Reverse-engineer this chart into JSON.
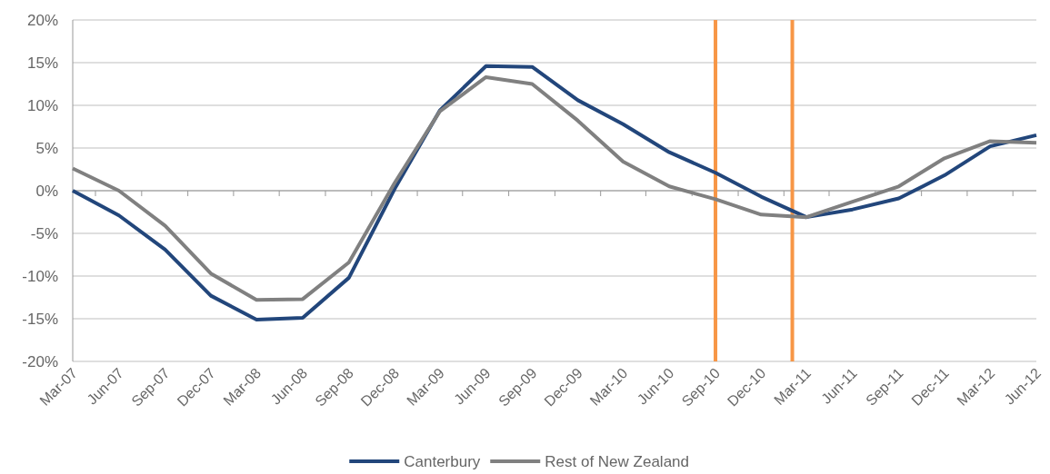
{
  "chart_data": {
    "type": "line",
    "x": [
      "2007-03",
      "2007-06",
      "2007-09",
      "2007-12",
      "2008-03",
      "2008-06",
      "2008-09",
      "2008-12",
      "2009-03",
      "2009-06",
      "2009-09",
      "2009-12",
      "2010-03",
      "2010-06",
      "2010-09",
      "2010-12",
      "2011-03",
      "2011-06",
      "2011-09",
      "2011-12",
      "2012-03",
      "2012-06"
    ],
    "series": [
      {
        "name": "Canterbury",
        "color": "#22467b",
        "values": [
          0,
          -2.9,
          -6.9,
          -12.3,
          -15.1,
          -14.9,
          -10.2,
          0.2,
          9.4,
          14.6,
          14.5,
          10.6,
          7.8,
          4.5,
          2.1,
          -0.7,
          -3.1,
          -2.2,
          -0.9,
          1.8,
          5.2,
          6.5
        ]
      },
      {
        "name": "Rest of New Zealand",
        "color": "#808080",
        "values": [
          2.6,
          0,
          -4.1,
          -9.7,
          -12.8,
          -12.7,
          -8.4,
          0.9,
          9.3,
          13.3,
          12.5,
          8.2,
          3.4,
          0.5,
          -1.0,
          -2.8,
          -3.1,
          -1.3,
          0.5,
          3.8,
          5.8,
          5.6
        ]
      }
    ],
    "xlim": [
      "2007-03",
      "2012-06"
    ],
    "xticks": [
      {
        "value": "2007-03",
        "label": "Mar-07"
      },
      {
        "value": "2007-06",
        "label": "Jun-07"
      },
      {
        "value": "2007-09",
        "label": "Sep-07"
      },
      {
        "value": "2007-12",
        "label": "Dec-07"
      },
      {
        "value": "2008-03",
        "label": "Mar-08"
      },
      {
        "value": "2008-06",
        "label": "Jun-08"
      },
      {
        "value": "2008-09",
        "label": "Sep-08"
      },
      {
        "value": "2008-12",
        "label": "Dec-08"
      },
      {
        "value": "2009-03",
        "label": "Mar-09"
      },
      {
        "value": "2009-06",
        "label": "Jun-09"
      },
      {
        "value": "2009-09",
        "label": "Sep-09"
      },
      {
        "value": "2009-12",
        "label": "Dec-09"
      },
      {
        "value": "2010-03",
        "label": "Mar-10"
      },
      {
        "value": "2010-06",
        "label": "Jun-10"
      },
      {
        "value": "2010-09",
        "label": "Sep-10"
      },
      {
        "value": "2010-12",
        "label": "Dec-10"
      },
      {
        "value": "2011-03",
        "label": "Mar-11"
      },
      {
        "value": "2011-06",
        "label": "Jun-11"
      },
      {
        "value": "2011-09",
        "label": "Sep-11"
      },
      {
        "value": "2011-12",
        "label": "Dec-11"
      },
      {
        "value": "2012-03",
        "label": "Mar-12"
      },
      {
        "value": "2012-06",
        "label": "Jun-12"
      }
    ],
    "ylim": [
      -20,
      20
    ],
    "yticks": [
      {
        "value": -20,
        "label": "-20%"
      },
      {
        "value": -15,
        "label": "-15%"
      },
      {
        "value": -10,
        "label": "-10%"
      },
      {
        "value": -5,
        "label": "-5%"
      },
      {
        "value": 0,
        "label": "0%"
      },
      {
        "value": 5,
        "label": "5%"
      },
      {
        "value": 10,
        "label": "10%"
      },
      {
        "value": 15,
        "label": "15%"
      },
      {
        "value": 20,
        "label": "20%"
      }
    ],
    "ref_lines": [
      {
        "axis": "x",
        "value": "2010-09",
        "color": "#f79646"
      },
      {
        "axis": "x",
        "value": "2011-02",
        "color": "#f79646"
      }
    ],
    "grid": "y",
    "legend": "bottom",
    "marker": "none",
    "line_style": "solid"
  }
}
